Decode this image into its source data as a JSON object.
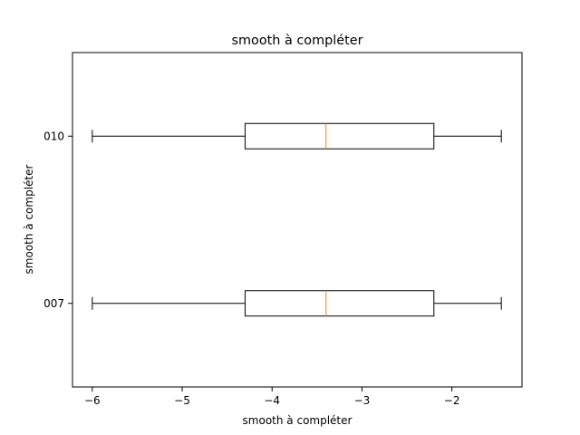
{
  "chart_data": {
    "type": "boxplot",
    "orientation": "horizontal",
    "title": "smooth à compléter",
    "xlabel": "smooth à compléter",
    "ylabel": "smooth à compléter",
    "xlim": [
      -6.22,
      -1.22
    ],
    "x_ticks": [
      -6,
      -5,
      -4,
      -3,
      -2
    ],
    "x_tick_labels": [
      "−6",
      "−5",
      "−4",
      "−3",
      "−2"
    ],
    "categories": [
      "007",
      "010"
    ],
    "series": [
      {
        "name": "007",
        "whisker_low": -6.0,
        "q1": -4.3,
        "median": -3.4,
        "q3": -2.2,
        "whisker_high": -1.45
      },
      {
        "name": "010",
        "whisker_low": -6.0,
        "q1": -4.3,
        "median": -3.4,
        "q3": -2.2,
        "whisker_high": -1.45
      }
    ],
    "colors": {
      "box": "#000000",
      "median": "#ff7f0e"
    },
    "grid": false
  }
}
